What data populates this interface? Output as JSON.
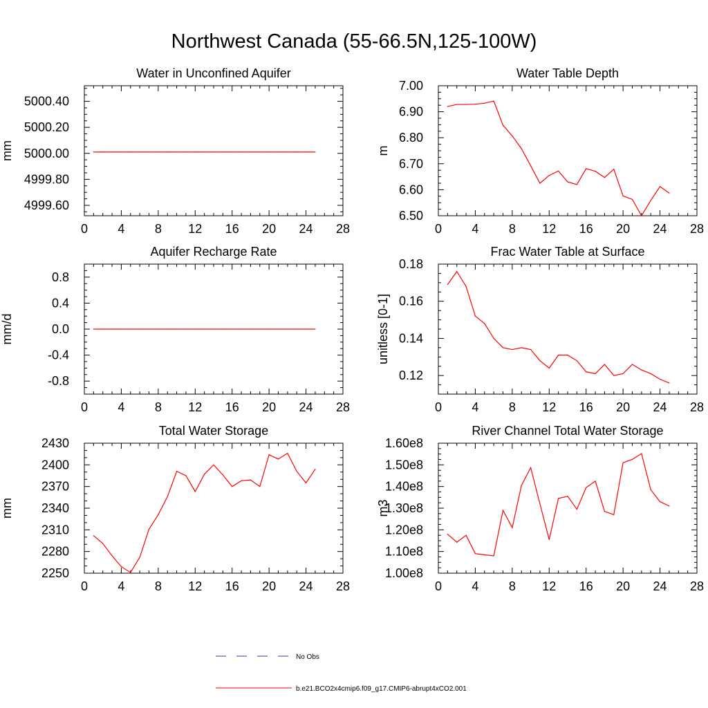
{
  "title": "Northwest Canada (55-66.5N,125-100W)",
  "chart_data": [
    {
      "type": "line",
      "title": "Water in Unconfined Aquifer",
      "xlabel": "",
      "ylabel": "mm",
      "xlim": [
        0,
        28
      ],
      "ylim": [
        4999.52,
        5000.52
      ],
      "xticks": [
        0,
        4,
        8,
        12,
        16,
        20,
        24,
        28
      ],
      "yticks": [
        4999.6,
        4999.8,
        5000.0,
        5000.2,
        5000.4
      ],
      "ytick_labels": [
        "4999.60",
        "4999.80",
        "5000.00",
        "5000.20",
        "5000.40"
      ],
      "ymin_step": 0.05,
      "series": [
        {
          "name": "b.e21.BCO2x4cmip6.f09_g17.CMIP6-abrupt4xCO2.001",
          "color": "#ff0000",
          "x": [
            1,
            2,
            3,
            4,
            5,
            6,
            7,
            8,
            9,
            10,
            11,
            12,
            13,
            14,
            15,
            16,
            17,
            18,
            19,
            20,
            21,
            22,
            23,
            24,
            25
          ],
          "values": [
            5000.01,
            5000.01,
            5000.01,
            5000.01,
            5000.01,
            5000.01,
            5000.01,
            5000.01,
            5000.01,
            5000.01,
            5000.01,
            5000.01,
            5000.01,
            5000.01,
            5000.01,
            5000.01,
            5000.01,
            5000.01,
            5000.01,
            5000.01,
            5000.01,
            5000.01,
            5000.01,
            5000.01,
            5000.01
          ]
        }
      ]
    },
    {
      "type": "line",
      "title": "Water Table Depth",
      "xlabel": "",
      "ylabel": "m",
      "xlim": [
        0,
        28
      ],
      "ylim": [
        6.5,
        7.0
      ],
      "xticks": [
        0,
        4,
        8,
        12,
        16,
        20,
        24,
        28
      ],
      "yticks": [
        6.5,
        6.6,
        6.7,
        6.8,
        6.9,
        7.0
      ],
      "ytick_labels": [
        "6.50",
        "6.60",
        "6.70",
        "6.80",
        "6.90",
        "7.00"
      ],
      "ymin_step": 0.025,
      "series": [
        {
          "name": "b.e21.BCO2x4cmip6.f09_g17.CMIP6-abrupt4xCO2.001",
          "color": "#ff0000",
          "x": [
            1,
            2,
            3,
            4,
            5,
            6,
            7,
            8,
            9,
            10,
            11,
            12,
            13,
            14,
            15,
            16,
            17,
            18,
            19,
            20,
            21,
            22,
            23,
            24,
            25
          ],
          "values": [
            6.92,
            6.928,
            6.928,
            6.929,
            6.933,
            6.941,
            6.848,
            6.807,
            6.758,
            6.692,
            6.625,
            6.655,
            6.672,
            6.63,
            6.62,
            6.681,
            6.671,
            6.647,
            6.679,
            6.576,
            6.563,
            6.5,
            6.559,
            6.612,
            6.587
          ]
        }
      ]
    },
    {
      "type": "line",
      "title": "Aquifer Recharge Rate",
      "xlabel": "",
      "ylabel": "mm/d",
      "xlim": [
        0,
        28
      ],
      "ylim": [
        -1.0,
        1.0
      ],
      "xticks": [
        0,
        4,
        8,
        12,
        16,
        20,
        24,
        28
      ],
      "yticks": [
        -0.8,
        -0.4,
        0.0,
        0.4,
        0.8
      ],
      "ytick_labels": [
        "-0.8",
        "-0.4",
        "0.0",
        "0.4",
        "0.8"
      ],
      "ymin_step": 0.1,
      "series": [
        {
          "name": "b.e21.BCO2x4cmip6.f09_g17.CMIP6-abrupt4xCO2.001",
          "color": "#ff0000",
          "x": [
            1,
            2,
            3,
            4,
            5,
            6,
            7,
            8,
            9,
            10,
            11,
            12,
            13,
            14,
            15,
            16,
            17,
            18,
            19,
            20,
            21,
            22,
            23,
            24,
            25
          ],
          "values": [
            0,
            0,
            0,
            0,
            0,
            0,
            0,
            0,
            0,
            0,
            0,
            0,
            0,
            0,
            0,
            0,
            0,
            0,
            0,
            0,
            0,
            0,
            0,
            0,
            0
          ]
        }
      ]
    },
    {
      "type": "line",
      "title": "Frac Water Table at Surface",
      "xlabel": "",
      "ylabel": "unitless [0-1]",
      "xlim": [
        0,
        28
      ],
      "ylim": [
        0.11,
        0.18
      ],
      "xticks": [
        0,
        4,
        8,
        12,
        16,
        20,
        24,
        28
      ],
      "yticks": [
        0.12,
        0.14,
        0.16,
        0.18
      ],
      "ytick_labels": [
        "0.12",
        "0.14",
        "0.16",
        "0.18"
      ],
      "ymin_step": 0.005,
      "series": [
        {
          "name": "b.e21.BCO2x4cmip6.f09_g17.CMIP6-abrupt4xCO2.001",
          "color": "#ff0000",
          "x": [
            1,
            2,
            3,
            4,
            5,
            6,
            7,
            8,
            9,
            10,
            11,
            12,
            13,
            14,
            15,
            16,
            17,
            18,
            19,
            20,
            21,
            22,
            23,
            24,
            25
          ],
          "values": [
            0.169,
            0.176,
            0.168,
            0.152,
            0.148,
            0.14,
            0.135,
            0.134,
            0.135,
            0.134,
            0.128,
            0.124,
            0.131,
            0.131,
            0.128,
            0.122,
            0.121,
            0.126,
            0.12,
            0.121,
            0.126,
            0.123,
            0.121,
            0.118,
            0.116
          ]
        }
      ]
    },
    {
      "type": "line",
      "title": "Total Water Storage",
      "xlabel": "",
      "ylabel": "mm",
      "xlim": [
        0,
        28
      ],
      "ylim": [
        2250,
        2430
      ],
      "xticks": [
        0,
        4,
        8,
        12,
        16,
        20,
        24,
        28
      ],
      "yticks": [
        2250,
        2280,
        2310,
        2340,
        2370,
        2400,
        2430
      ],
      "ytick_labels": [
        "2250",
        "2280",
        "2310",
        "2340",
        "2370",
        "2400",
        "2430"
      ],
      "ymin_step": 10,
      "series": [
        {
          "name": "b.e21.BCO2x4cmip6.f09_g17.CMIP6-abrupt4xCO2.001",
          "color": "#ff0000",
          "x": [
            1,
            2,
            3,
            4,
            5,
            6,
            7,
            8,
            9,
            10,
            11,
            12,
            13,
            14,
            15,
            16,
            17,
            18,
            19,
            20,
            21,
            22,
            23,
            24,
            25
          ],
          "values": [
            2302,
            2291,
            2274,
            2259,
            2251,
            2272,
            2311,
            2331,
            2356,
            2391,
            2385,
            2363,
            2387,
            2400,
            2386,
            2370,
            2378,
            2379,
            2370,
            2414,
            2408,
            2416,
            2391,
            2375,
            2394
          ]
        }
      ]
    },
    {
      "type": "line",
      "title": "River Channel Total Water Storage",
      "xlabel": "",
      "ylabel": "m3",
      "xlim": [
        0,
        28
      ],
      "ylim": [
        100000000.0,
        160000000.0
      ],
      "xticks": [
        0,
        4,
        8,
        12,
        16,
        20,
        24,
        28
      ],
      "yticks": [
        100000000.0,
        110000000.0,
        120000000.0,
        130000000.0,
        140000000.0,
        150000000.0,
        160000000.0
      ],
      "ytick_labels": [
        "1.00e8",
        "1.10e8",
        "1.20e8",
        "1.30e8",
        "1.40e8",
        "1.50e8",
        "1.60e8"
      ],
      "ymin_step": 2500000.0,
      "series": [
        {
          "name": "b.e21.BCO2x4cmip6.f09_g17.CMIP6-abrupt4xCO2.001",
          "color": "#ff0000",
          "x": [
            1,
            2,
            3,
            4,
            5,
            6,
            7,
            8,
            9,
            10,
            11,
            12,
            13,
            14,
            15,
            16,
            17,
            18,
            19,
            20,
            21,
            22,
            23,
            24,
            25
          ],
          "values": [
            118000000.0,
            114300000.0,
            117500000.0,
            109000000.0,
            108500000.0,
            108000000.0,
            129000000.0,
            121000000.0,
            140500000.0,
            148700000.0,
            132000000.0,
            115500000.0,
            134500000.0,
            135500000.0,
            129500000.0,
            139500000.0,
            142500000.0,
            128500000.0,
            127000000.0,
            151000000.0,
            152500000.0,
            155200000.0,
            138500000.0,
            133000000.0,
            131000000.0
          ]
        }
      ]
    }
  ],
  "legend": [
    {
      "label": "No Obs",
      "style": "dashed",
      "color": "#3333aa"
    },
    {
      "label": "b.e21.BCO2x4cmip6.f09_g17.CMIP6-abrupt4xCO2.001",
      "style": "solid",
      "color": "#ff0000"
    }
  ]
}
